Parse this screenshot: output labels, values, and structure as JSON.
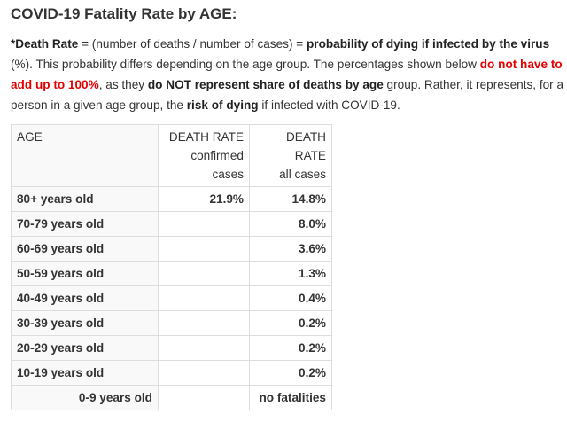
{
  "page": {
    "title": "COVID-19 Fatality Rate by AGE:",
    "intro": {
      "asterisk": "*",
      "death_rate_term": "Death Rate",
      "p1": " = (number of deaths / number of cases) = ",
      "probability_phrase": "probability of dying if infected by the virus",
      "p2": " (%). This probability differs depending on the age group. The percentages shown below ",
      "do_not_add": "do not have to add up to 100%",
      "p3": ", as they ",
      "not_share": "do NOT represent share of deaths by age",
      "p4": " group. Rather, it represents, for a person in a given age group, the ",
      "risk": "risk of dying",
      "p5": " if infected with COVID-19."
    }
  },
  "table": {
    "headers": {
      "age": "AGE",
      "confirmed_line1": "DEATH RATE",
      "confirmed_line2": "confirmed",
      "confirmed_line3": "cases",
      "all_line1": "DEATH RATE",
      "all_line2": "all cases"
    },
    "rows": [
      {
        "age": "80+ years old",
        "confirmed": "21.9%",
        "all": "14.8%"
      },
      {
        "age": "70-79 years old",
        "confirmed": "",
        "all": "8.0%"
      },
      {
        "age": "60-69 years old",
        "confirmed": "",
        "all": "3.6%"
      },
      {
        "age": "50-59 years old",
        "confirmed": "",
        "all": "1.3%"
      },
      {
        "age": "40-49 years old",
        "confirmed": "",
        "all": "0.4%"
      },
      {
        "age": "30-39 years old",
        "confirmed": "",
        "all": "0.2%"
      },
      {
        "age": "20-29 years old",
        "confirmed": "",
        "all": "0.2%"
      },
      {
        "age": "10-19 years old",
        "confirmed": "",
        "all": "0.2%"
      },
      {
        "age": "0-9 years old",
        "confirmed": "",
        "all": "no fatalities"
      }
    ]
  },
  "colors": {
    "text": "#333333",
    "emphasis_red": "#e60000",
    "table_border": "#dddddd",
    "age_column_bg": "#f9f9f9"
  }
}
